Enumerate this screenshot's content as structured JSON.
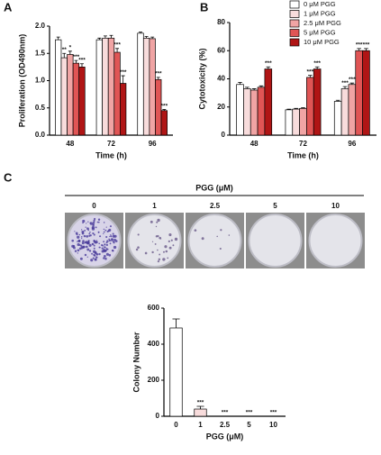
{
  "panel_labels": [
    "A",
    "B",
    "C"
  ],
  "colony_assay": {
    "title": "PGG (μM)",
    "labels": [
      "0",
      "1",
      "2.5",
      "5",
      "10"
    ]
  },
  "chart_data": [
    {
      "type": "bar",
      "ylabel": "Proliferation (OD490nm)",
      "xlabel": "Time (h)",
      "categories": [
        "48",
        "72",
        "96"
      ],
      "ylim": [
        0,
        2
      ],
      "yticks": [
        {
          "value": 0,
          "label": "0.0"
        },
        0.5,
        {
          "value": 1,
          "label": "1.0"
        },
        1.5,
        {
          "value": 2,
          "label": "2.0"
        }
      ],
      "series": [
        {
          "color": "#ffffff",
          "values": [
            1.75,
            1.75,
            1.87
          ],
          "errors": [
            0.05,
            0.03,
            0.02
          ],
          "significance": [
            null,
            null,
            null
          ]
        },
        {
          "color": "#f8dcdc",
          "values": [
            1.42,
            1.78,
            1.78
          ],
          "errors": [
            0.08,
            0.04,
            0.03
          ],
          "significance": [
            "**",
            null,
            null
          ]
        },
        {
          "color": "#f0a4a4",
          "values": [
            1.48,
            1.78,
            1.77
          ],
          "errors": [
            0.06,
            0.05,
            0.03
          ],
          "significance": [
            "*",
            null,
            null
          ]
        },
        {
          "color": "#e05555",
          "values": [
            1.32,
            1.52,
            1.02
          ],
          "errors": [
            0.05,
            0.07,
            0.04
          ],
          "significance": [
            "***",
            "***",
            "***"
          ]
        },
        {
          "color": "#b01515",
          "values": [
            1.25,
            0.95,
            0.45
          ],
          "errors": [
            0.06,
            0.14,
            0.02
          ],
          "significance": [
            "***",
            "***",
            "***"
          ]
        }
      ]
    },
    {
      "type": "bar",
      "ylabel": "Cytotoxicity (%)",
      "xlabel": "Time (h)",
      "categories": [
        "48",
        "72",
        "96"
      ],
      "ylim": [
        0,
        80
      ],
      "yticks": [
        0,
        20,
        40,
        60,
        80
      ],
      "legend": "top-right",
      "series": [
        {
          "name": "0 μM PGG",
          "color": "#ffffff",
          "values": [
            36,
            18,
            24
          ],
          "errors": [
            1.5,
            0.5,
            0.8
          ],
          "significance": [
            null,
            null,
            null
          ]
        },
        {
          "name": "1 μM PGG",
          "color": "#f8dcdc",
          "values": [
            33,
            18.5,
            33
          ],
          "errors": [
            1,
            0.5,
            1.5
          ],
          "significance": [
            null,
            null,
            "***"
          ]
        },
        {
          "name": "2.5 μM PGG",
          "color": "#f0a4a4",
          "values": [
            32,
            19,
            36
          ],
          "errors": [
            1,
            0.5,
            1
          ],
          "significance": [
            null,
            null,
            "***"
          ]
        },
        {
          "name": "5 μM PGG",
          "color": "#e05555",
          "values": [
            34,
            41,
            60
          ],
          "errors": [
            1,
            1.5,
            1.5
          ],
          "significance": [
            null,
            "***",
            "***"
          ]
        },
        {
          "name": "10 μM PGG",
          "color": "#b01515",
          "values": [
            47,
            47,
            60
          ],
          "errors": [
            1.5,
            1.5,
            1.5
          ],
          "significance": [
            "***",
            "***",
            "***"
          ]
        }
      ]
    },
    {
      "type": "bar",
      "ylabel": "Colony Number",
      "xlabel": "PGG (μM)",
      "categories": [
        "0",
        "1",
        "2.5",
        "5",
        "10"
      ],
      "ylim": [
        0,
        600
      ],
      "yticks": [
        0,
        200,
        400,
        600
      ],
      "series": [
        {
          "colors": [
            "#ffffff",
            "#f8dcdc",
            "#f0a4a4",
            "#e05555",
            "#b01515"
          ],
          "values": [
            490,
            40,
            0,
            0,
            0
          ],
          "errors": [
            50,
            15,
            0,
            0,
            0
          ],
          "significance": [
            null,
            "***",
            "***",
            "***",
            "***"
          ]
        }
      ]
    }
  ]
}
